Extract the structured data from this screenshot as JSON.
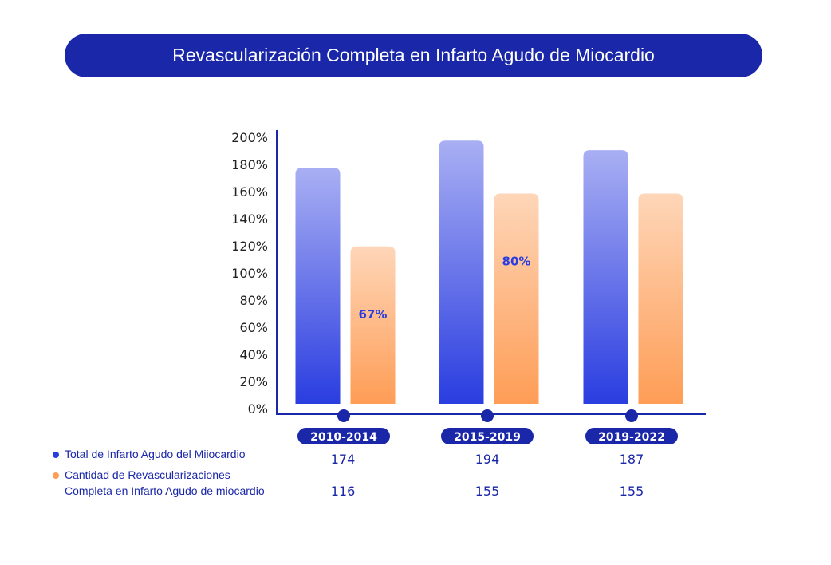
{
  "chart_data": {
    "type": "bar",
    "title": "Revascularización Completa en Infarto Agudo de Miocardio",
    "categories": [
      "2010-2014",
      "2015-2019",
      "2019-2022"
    ],
    "series": [
      {
        "name": "Total de Infarto Agudo del Miiocardio",
        "values": [
          174,
          194,
          187
        ],
        "color": "#2a3de0",
        "color_top": "#a9aff3"
      },
      {
        "name": "Cantidad de Revascularizaciones Completa en Infarto Agudo de miocardio",
        "name_line1": "Cantidad de Revascularizaciones",
        "name_line2": "Completa en Infarto Agudo de miocardio",
        "values": [
          116,
          155,
          155
        ],
        "color": "#fe9d56",
        "color_top": "#fed6b8"
      }
    ],
    "bar_labels": [
      "67%",
      "80%",
      ""
    ],
    "yticks": [
      "0%",
      "20%",
      "40%",
      "60%",
      "80%",
      "100%",
      "120%",
      "140%",
      "160%",
      "180%",
      "200%"
    ],
    "ylim": [
      0,
      200
    ],
    "xlabel": "",
    "ylabel": "",
    "grid": false,
    "legend": "bottom-left"
  },
  "colors": {
    "accent": "#1a27a8",
    "label": "#2a3de0"
  }
}
